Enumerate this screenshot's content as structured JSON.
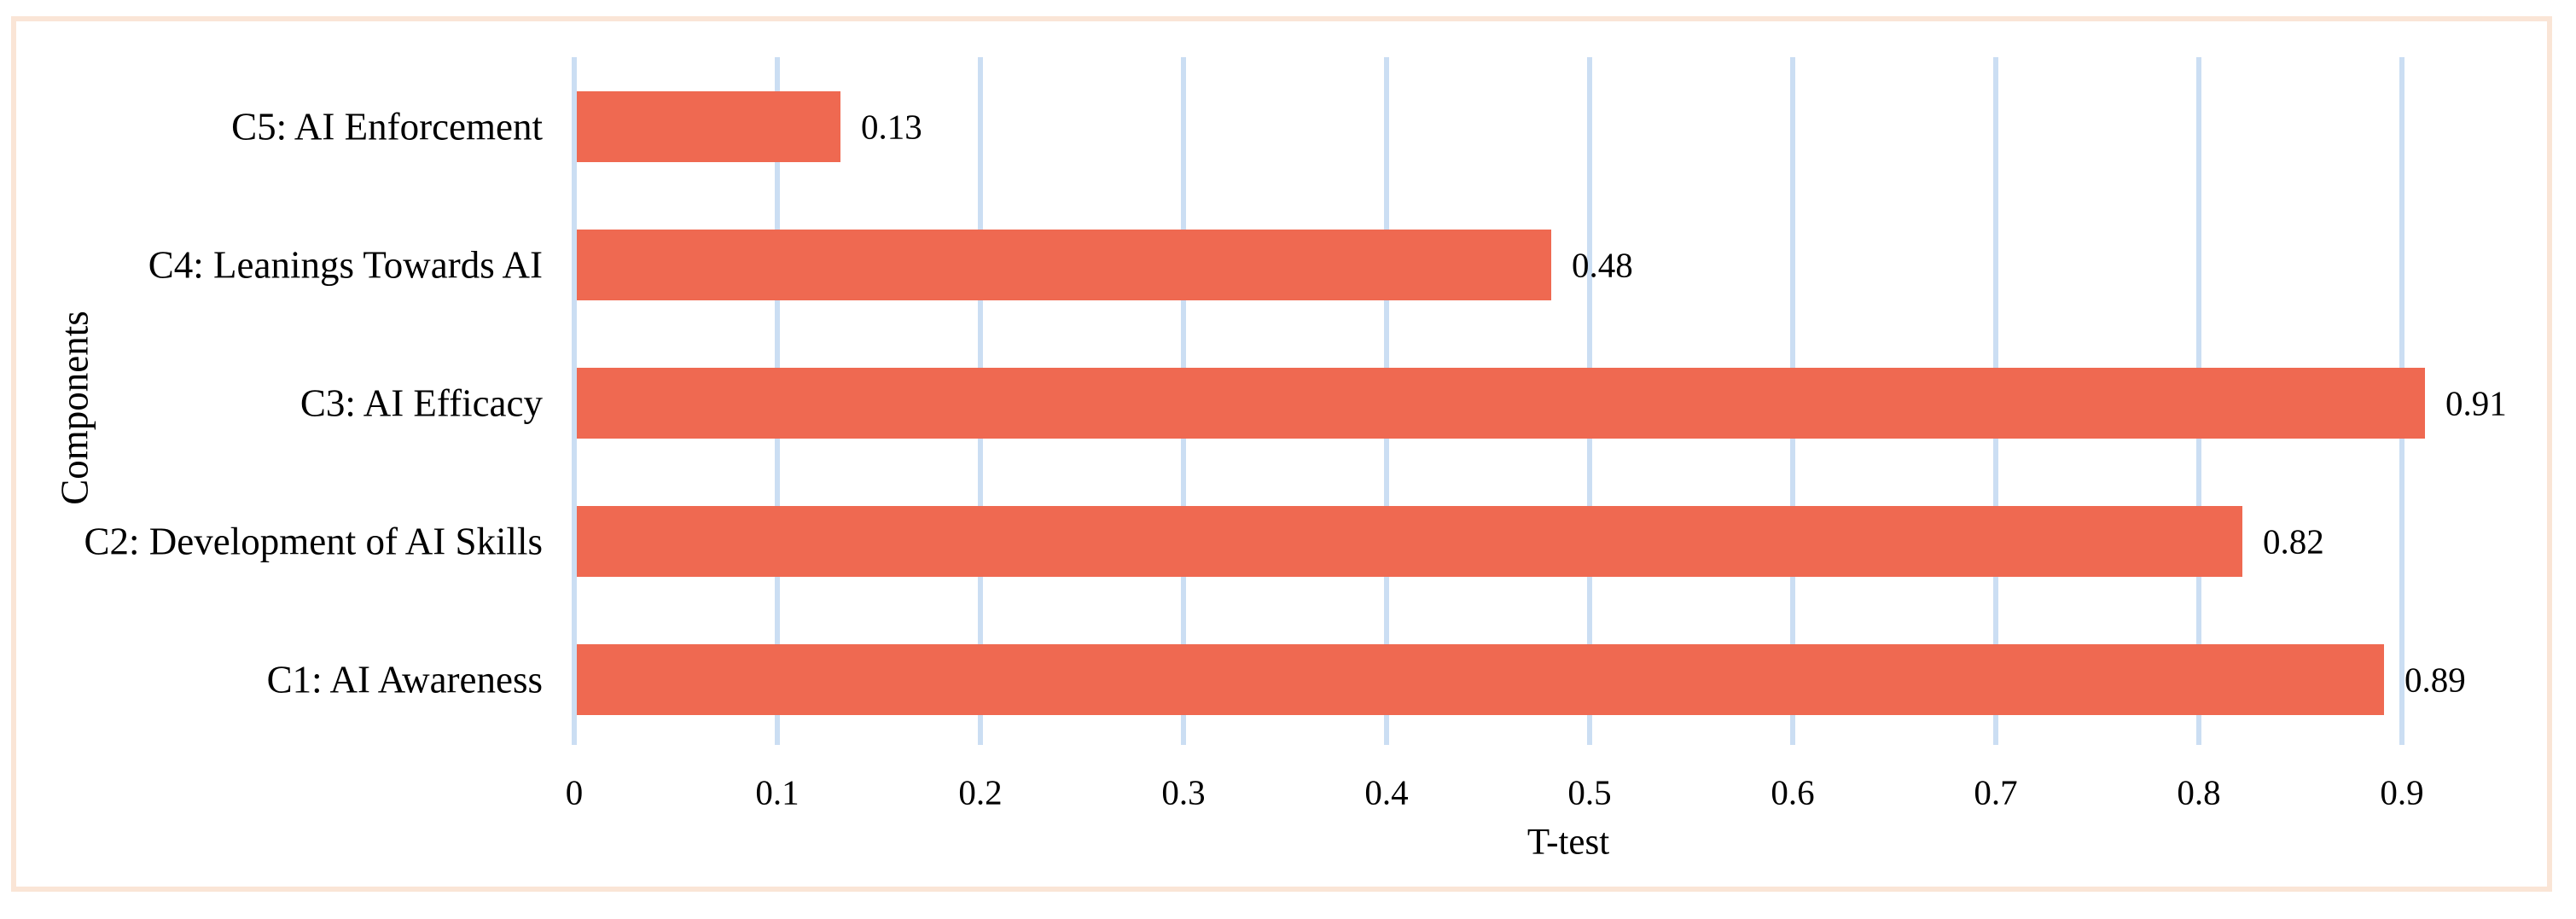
{
  "frame": {
    "border_color": "#FAE5D6",
    "background_color": "#FFFFFF"
  },
  "chart_data": {
    "type": "bar",
    "orientation": "horizontal",
    "title": "",
    "xlabel": "T-test",
    "ylabel": "Components",
    "rows_top_to_bottom": [
      {
        "label": "C5: AI Enforcement",
        "value": 0.13,
        "value_label": "0.13"
      },
      {
        "label": "C4: Leanings Towards AI",
        "value": 0.48,
        "value_label": "0.48"
      },
      {
        "label": "C3: AI Efficacy",
        "value": 0.91,
        "value_label": "0.91"
      },
      {
        "label": "C2: Development of AI Skills",
        "value": 0.82,
        "value_label": "0.82"
      },
      {
        "label": "C1: AI Awareness",
        "value": 0.89,
        "value_label": "0.89"
      }
    ],
    "x_ticks": [
      "0",
      "0.1",
      "0.2",
      "0.3",
      "0.4",
      "0.5",
      "0.6",
      "0.7",
      "0.8",
      "0.9"
    ],
    "x_tick_values": [
      0,
      0.1,
      0.2,
      0.3,
      0.4,
      0.5,
      0.6,
      0.7,
      0.8,
      0.9
    ],
    "xlim": [
      0,
      0.977
    ],
    "grid": "vertical-gridlines-only",
    "legend": "none",
    "bar_color": "#EF6951",
    "gridline_color": "#CBDEF3",
    "text_color": "#000000"
  }
}
